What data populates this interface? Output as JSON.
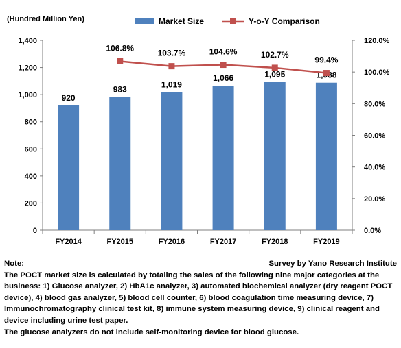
{
  "chart_data": {
    "type": "bar",
    "categories": [
      "FY2014",
      "FY2015",
      "FY2016",
      "FY2017",
      "FY2018",
      "FY2019"
    ],
    "bar_series": {
      "name": "Market Size",
      "values": [
        920,
        983,
        1019,
        1066,
        1095,
        1088
      ],
      "labels": [
        "920",
        "983",
        "1,019",
        "1,066",
        "1,095",
        "1,088"
      ],
      "color": "#4f81bd"
    },
    "line_series": {
      "name": "Y-o-Y Comparison",
      "values": [
        null,
        106.8,
        103.7,
        104.6,
        102.7,
        99.4
      ],
      "labels": [
        "",
        "106.8%",
        "103.7%",
        "104.6%",
        "102.7%",
        "99.4%"
      ],
      "color": "#c0504d"
    },
    "y_left": {
      "unit_label": "(Hundred Million Yen)",
      "range": [
        0,
        1400
      ],
      "tick_labels": [
        "0",
        "200",
        "400",
        "600",
        "800",
        "1,000",
        "1,200",
        "1,400"
      ]
    },
    "y_right": {
      "range": [
        0,
        120
      ],
      "tick_labels": [
        "0.0%",
        "20.0%",
        "40.0%",
        "60.0%",
        "80.0%",
        "100.0%",
        "120.0%"
      ]
    },
    "legend_position": "top",
    "grid": false
  },
  "notes": {
    "heading": "Note:",
    "source": "Survey by Yano Research Institute",
    "paragraph1": "The POCT market size is calculated by totaling the sales of the following nine major categories at the business: 1) Glucose analyzer, 2) HbA1c analyzer, 3) automated biochemical analyzer (dry reagent POCT device), 4) blood gas analyzer, 5) blood cell counter, 6) blood coagulation time measuring device, 7) Immunochromatography clinical test kit, 8) immune system measuring device, 9) clinical reagent and device including urine test paper.",
    "paragraph2": "The glucose analyzers do not include self-monitoring device for blood glucose."
  }
}
